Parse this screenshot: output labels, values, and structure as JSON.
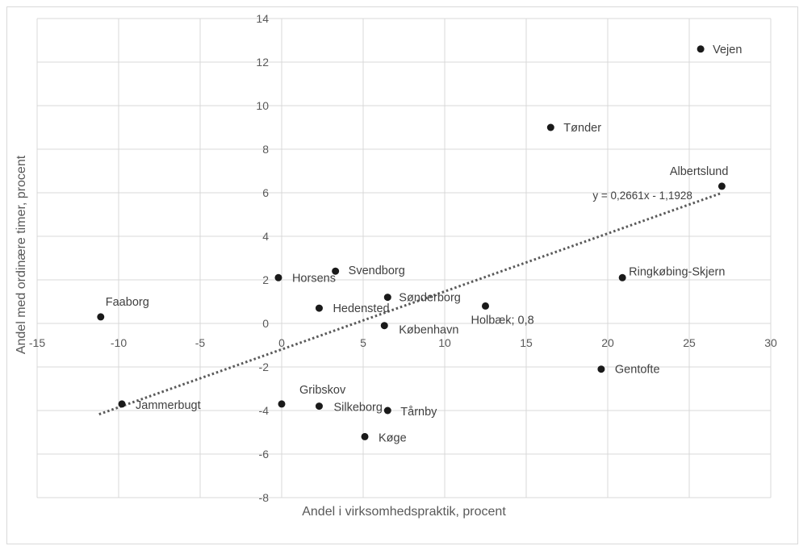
{
  "chart_data": {
    "type": "scatter",
    "title": "",
    "xlabel": "Andel i virksomhedspraktik, procent",
    "ylabel": "Andel med ordinære timer, procent",
    "xlim": [
      -15,
      30
    ],
    "ylim": [
      -8,
      14
    ],
    "x_ticks": [
      "-15",
      "-10",
      "-5",
      "0",
      "5",
      "10",
      "15",
      "20",
      "25",
      "30"
    ],
    "y_ticks": [
      "-8",
      "-6",
      "-4",
      "-2",
      "0",
      "2",
      "4",
      "6",
      "8",
      "10",
      "12",
      "14"
    ],
    "grid": true,
    "marker_color": "#1a1a1a",
    "trendline": {
      "style": "dotted",
      "color": "#595959",
      "slope": 0.2661,
      "intercept": -1.1928,
      "x_range": [
        -11.2,
        27
      ],
      "equation_label": "y = 0,2661x - 1,1928"
    },
    "points": [
      {
        "label": "Vejen",
        "x": 25.7,
        "y": 12.6
      },
      {
        "label": "Tønder",
        "x": 16.5,
        "y": 9.0
      },
      {
        "label": "Albertslund",
        "x": 27.0,
        "y": 6.3
      },
      {
        "label": "Ringkøbing-Skjern",
        "x": 20.9,
        "y": 2.1
      },
      {
        "label": "Svendborg",
        "x": 3.3,
        "y": 2.4
      },
      {
        "label": "Horsens",
        "x": -0.2,
        "y": 2.1
      },
      {
        "label": "Sønderborg",
        "x": 6.5,
        "y": 1.2
      },
      {
        "label": "Hedensted",
        "x": 2.3,
        "y": 0.7
      },
      {
        "label": "Holbæk; 0,8",
        "x": 12.5,
        "y": 0.8
      },
      {
        "label": "Faaborg",
        "x": -11.1,
        "y": 0.3
      },
      {
        "label": "København",
        "x": 6.3,
        "y": -0.1
      },
      {
        "label": "Gentofte",
        "x": 19.6,
        "y": -2.1
      },
      {
        "label": "Jammerbugt",
        "x": -9.8,
        "y": -3.7
      },
      {
        "label": "Gribskov",
        "x": 0.0,
        "y": -3.7
      },
      {
        "label": "Silkeborg",
        "x": 2.3,
        "y": -3.8
      },
      {
        "label": "Tårnby",
        "x": 6.5,
        "y": -4.0
      },
      {
        "label": "Køge",
        "x": 5.1,
        "y": -5.2
      }
    ]
  }
}
